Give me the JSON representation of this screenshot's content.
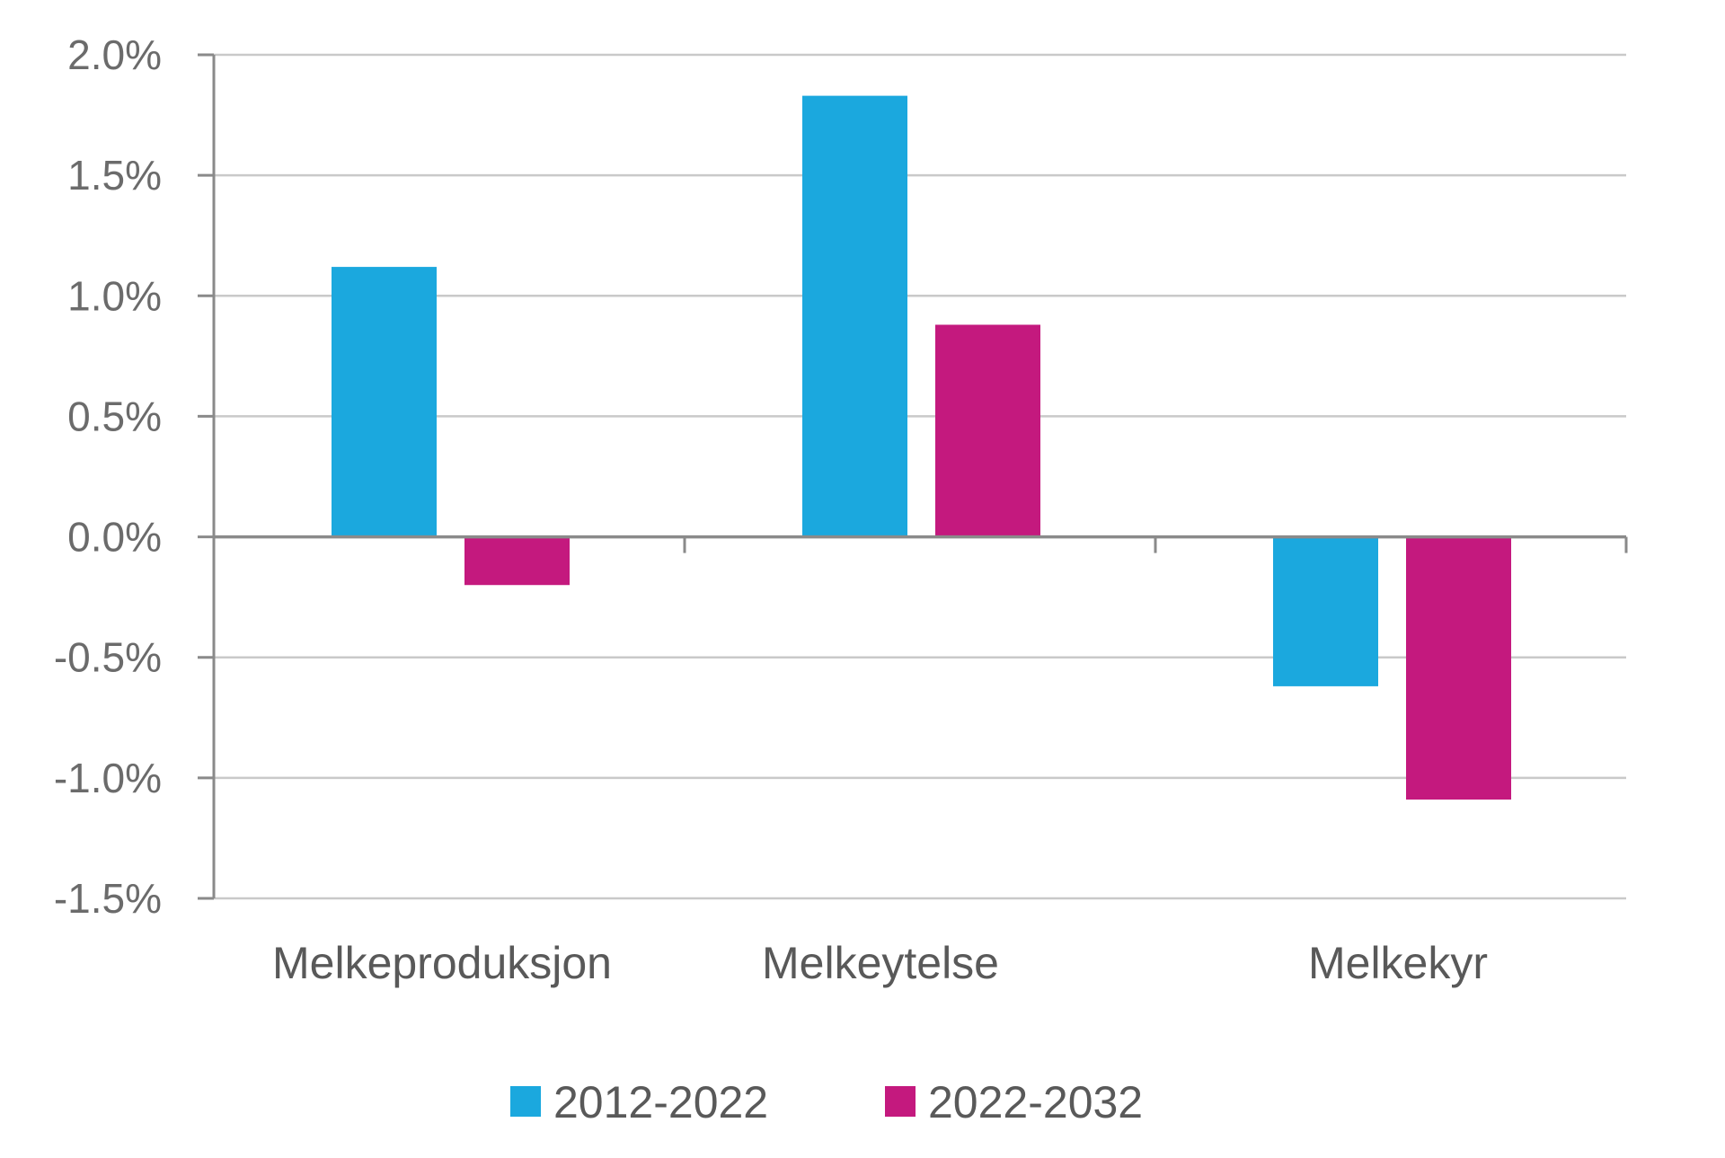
{
  "chart_data": {
    "type": "bar",
    "title": "",
    "xlabel": "",
    "ylabel": "",
    "categories": [
      "Melkeproduksjon",
      "Melkeytelse",
      "Melkekyr"
    ],
    "series": [
      {
        "name": "2012-2022",
        "color": "#1ba8de",
        "values": [
          1.12,
          1.83,
          -0.62
        ]
      },
      {
        "name": "2022-2032",
        "color": "#c4197e",
        "values": [
          -0.2,
          0.88,
          -1.09
        ]
      }
    ],
    "ylim": [
      -1.5,
      2.0
    ],
    "yticks": [
      2.0,
      1.5,
      1.0,
      0.5,
      0.0,
      -0.5,
      -1.0,
      -1.5
    ],
    "ytick_labels": [
      "2.0%",
      "1.5%",
      "1.0%",
      "0.5%",
      "0.0%",
      "-0.5%",
      "-1.0%",
      "-1.5%"
    ],
    "grid": true,
    "legend_position": "bottom"
  }
}
